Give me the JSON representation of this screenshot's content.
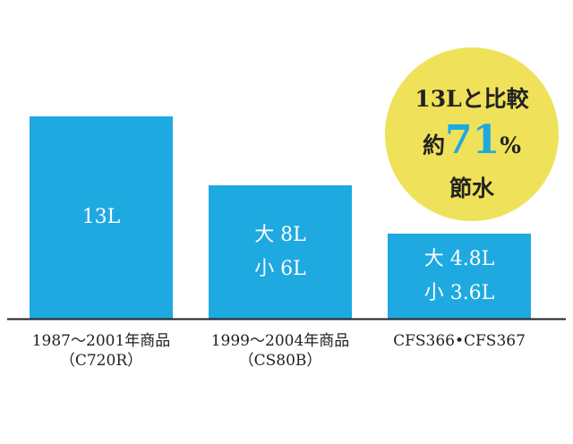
{
  "chart_data": {
    "type": "bar",
    "title": "",
    "xlabel": "",
    "ylabel": "",
    "ylim": [
      0,
      13
    ],
    "grid": false,
    "categories": [
      "1987〜2001年商品（C720R）",
      "1999〜2004年商品（CS80B）",
      "CFS366・CFS367"
    ],
    "category_lines": [
      [
        "1987〜2001年商品",
        "（C720R）"
      ],
      [
        "1999〜2004年商品",
        "（CS80B）"
      ],
      [
        "CFS366•CFS367"
      ]
    ],
    "values": [
      13,
      8,
      4.8
    ],
    "bar_labels": [
      [
        "13L"
      ],
      [
        "大 8L",
        "小 6L"
      ],
      [
        "大 4.8L",
        "小 3.6L"
      ]
    ],
    "colors": {
      "bar": "#1fa9e1",
      "axis": "#222222",
      "badge": "#efe25a",
      "accent": "#1fa9e1"
    }
  },
  "badge": {
    "line1": "13Lと比較",
    "prefix": "約",
    "percent": "71",
    "suffix": "%",
    "line3": "節水"
  }
}
